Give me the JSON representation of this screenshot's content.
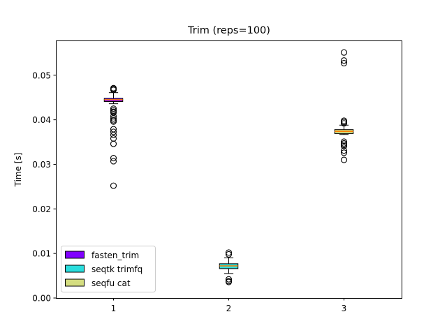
{
  "chart_data": {
    "type": "box",
    "title": "Trim (reps=100)",
    "xlabel": "",
    "ylabel": "Time [s]",
    "ylim": [
      0,
      0.0578
    ],
    "xlim": [
      0.5,
      3.5
    ],
    "x_ticks": [
      "1",
      "2",
      "3"
    ],
    "y_ticks": [
      "0.00",
      "0.01",
      "0.02",
      "0.03",
      "0.04",
      "0.05"
    ],
    "y_tick_values": [
      0,
      0.01,
      0.02,
      0.03,
      0.04,
      0.05
    ],
    "grid": false,
    "legend_position": "lower-left",
    "series": [
      {
        "name": "fasten_trim",
        "position": 1,
        "color": "#8000ff",
        "whisker_low": 0.0436,
        "q1": 0.0441,
        "median": 0.0445,
        "q3": 0.0448,
        "whisker_high": 0.0461,
        "outliers": [
          0.0471,
          0.0469,
          0.0467,
          0.0425,
          0.0421,
          0.0418,
          0.0416,
          0.0408,
          0.0403,
          0.0399,
          0.0396,
          0.0379,
          0.0373,
          0.0366,
          0.0358,
          0.0346,
          0.0314,
          0.0307,
          0.0252
        ]
      },
      {
        "name": "seqtk trimfq",
        "position": 2,
        "color": "#2adddd",
        "whisker_low": 0.0055,
        "q1": 0.0066,
        "median": 0.0072,
        "q3": 0.0077,
        "whisker_high": 0.009,
        "outliers": [
          0.0102,
          0.0098,
          0.0042,
          0.0038,
          0.0036
        ]
      },
      {
        "name": "seqfu cat",
        "position": 3,
        "color": "#d4dd80",
        "median_color": "#ff8000",
        "whisker_low": 0.0367,
        "q1": 0.0369,
        "median": 0.0374,
        "q3": 0.0378,
        "whisker_high": 0.0388,
        "outliers": [
          0.0551,
          0.0533,
          0.0527,
          0.0398,
          0.0395,
          0.0392,
          0.0351,
          0.0347,
          0.0344,
          0.0341,
          0.0331,
          0.0326,
          0.031
        ]
      }
    ]
  }
}
